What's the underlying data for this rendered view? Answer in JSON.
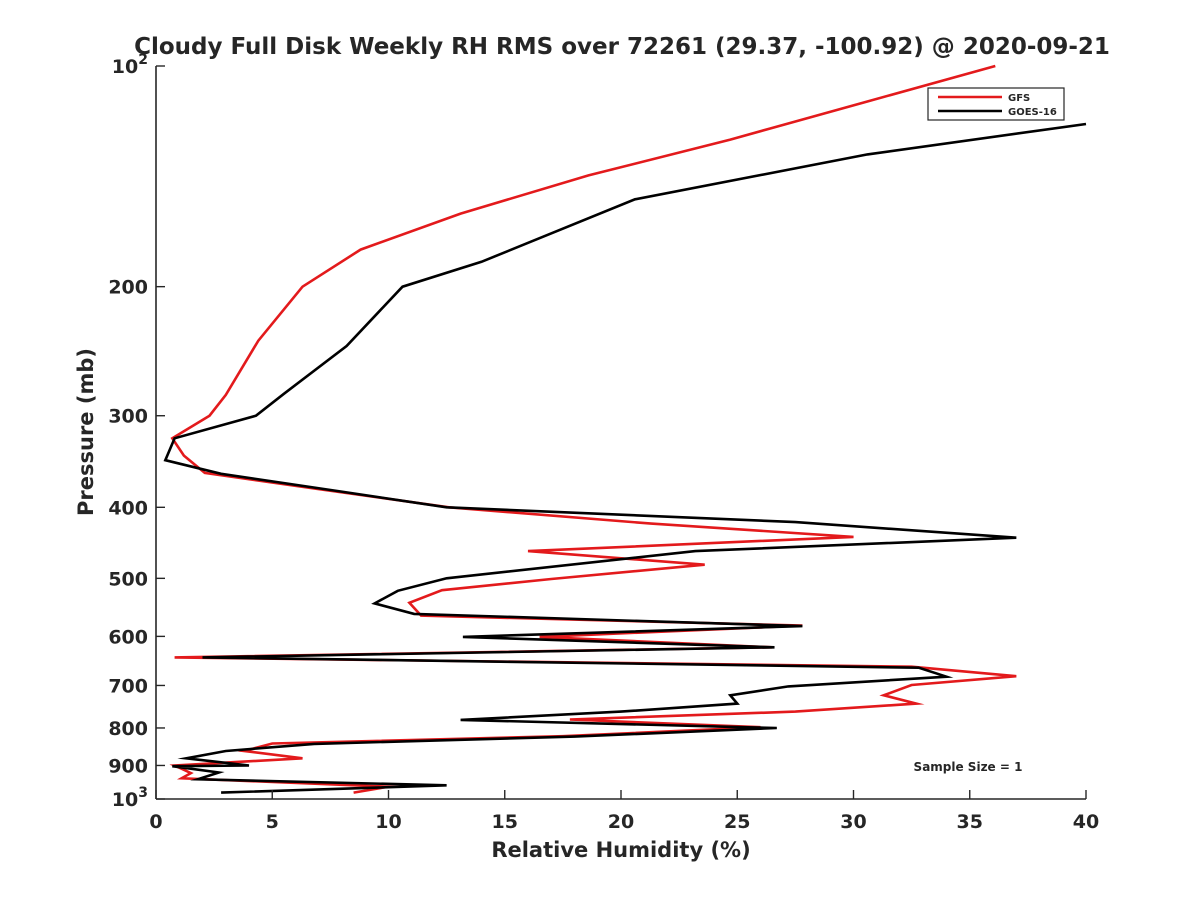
{
  "chart_data": {
    "type": "line",
    "title": "Cloudy Full Disk Weekly RH RMS over 72261 (29.37, -100.92) @ 2020-09-21",
    "xlabel": "Relative Humidity (%)",
    "ylabel": "Pressure (mb)",
    "xlim": [
      0,
      40
    ],
    "ylim": [
      100,
      1000
    ],
    "y_scale": "log",
    "y_reversed": true,
    "grid": false,
    "legend_position": "top-right",
    "x_ticks": [
      0,
      5,
      10,
      15,
      20,
      25,
      30,
      35,
      40
    ],
    "x_tick_labels": [
      "0",
      "5",
      "10",
      "15",
      "20",
      "25",
      "30",
      "35",
      "40"
    ],
    "y_ticks": [
      100,
      200,
      300,
      400,
      500,
      600,
      700,
      800,
      900,
      1000
    ],
    "y_tick_labels": [
      {
        "base": "10",
        "exp": "2"
      },
      {
        "base": "200",
        "exp": ""
      },
      {
        "base": "300",
        "exp": ""
      },
      {
        "base": "400",
        "exp": ""
      },
      {
        "base": "500",
        "exp": ""
      },
      {
        "base": "600",
        "exp": ""
      },
      {
        "base": "700",
        "exp": ""
      },
      {
        "base": "800",
        "exp": ""
      },
      {
        "base": "900",
        "exp": ""
      },
      {
        "base": "10",
        "exp": "3"
      }
    ],
    "annotation": "Sample Size = 1",
    "series": [
      {
        "name": "GFS",
        "color": "#e31a1c",
        "points": [
          [
            36.1,
            100
          ],
          [
            30.5,
            112
          ],
          [
            24.7,
            126
          ],
          [
            18.6,
            141
          ],
          [
            13.1,
            159
          ],
          [
            8.8,
            178
          ],
          [
            6.3,
            200
          ],
          [
            4.4,
            237
          ],
          [
            3.0,
            281
          ],
          [
            2.3,
            300
          ],
          [
            0.7,
            322
          ],
          [
            1.2,
            340
          ],
          [
            2.1,
            359
          ],
          [
            6.8,
            377
          ],
          [
            12.6,
            400
          ],
          [
            21.3,
            421
          ],
          [
            30.0,
            439
          ],
          [
            16.0,
            459
          ],
          [
            23.6,
            479
          ],
          [
            17.0,
            501
          ],
          [
            12.3,
            519
          ],
          [
            10.9,
            540
          ],
          [
            11.4,
            562
          ],
          [
            27.8,
            580
          ],
          [
            16.5,
            601
          ],
          [
            26.5,
            621
          ],
          [
            0.8,
            641
          ],
          [
            32.5,
            660
          ],
          [
            37.0,
            680
          ],
          [
            32.5,
            699
          ],
          [
            31.3,
            722
          ],
          [
            32.7,
            741
          ],
          [
            27.5,
            760
          ],
          [
            17.8,
            779
          ],
          [
            26.0,
            798
          ],
          [
            17.5,
            821
          ],
          [
            5.0,
            840
          ],
          [
            3.8,
            860
          ],
          [
            6.3,
            880
          ],
          [
            0.8,
            900
          ],
          [
            1.5,
            922
          ],
          [
            1.1,
            937
          ],
          [
            10.0,
            962
          ],
          [
            8.5,
            980
          ]
        ]
      },
      {
        "name": "GOES-16",
        "color": "#000000",
        "points": [
          [
            40.0,
            120
          ],
          [
            30.6,
            132
          ],
          [
            20.6,
            152
          ],
          [
            14.0,
            185
          ],
          [
            10.6,
            200
          ],
          [
            8.2,
            241
          ],
          [
            5.5,
            280
          ],
          [
            4.3,
            300
          ],
          [
            0.8,
            322
          ],
          [
            0.4,
            345
          ],
          [
            2.8,
            360
          ],
          [
            7.8,
            380
          ],
          [
            12.5,
            400
          ],
          [
            27.5,
            419
          ],
          [
            37.0,
            440
          ],
          [
            23.2,
            459
          ],
          [
            12.5,
            500
          ],
          [
            10.4,
            520
          ],
          [
            9.4,
            541
          ],
          [
            11.1,
            559
          ],
          [
            27.8,
            581
          ],
          [
            13.2,
            601
          ],
          [
            26.6,
            621
          ],
          [
            2.0,
            641
          ],
          [
            32.8,
            662
          ],
          [
            34.0,
            681
          ],
          [
            27.2,
            702
          ],
          [
            24.7,
            722
          ],
          [
            25.0,
            741
          ],
          [
            20.0,
            760
          ],
          [
            13.1,
            780
          ],
          [
            26.7,
            800
          ],
          [
            18.0,
            822
          ],
          [
            6.8,
            841
          ],
          [
            3.0,
            860
          ],
          [
            1.3,
            880
          ],
          [
            4.0,
            900
          ],
          [
            0.7,
            902
          ],
          [
            2.7,
            920
          ],
          [
            1.8,
            940
          ],
          [
            12.5,
            958
          ],
          [
            2.8,
            980
          ]
        ]
      }
    ]
  }
}
